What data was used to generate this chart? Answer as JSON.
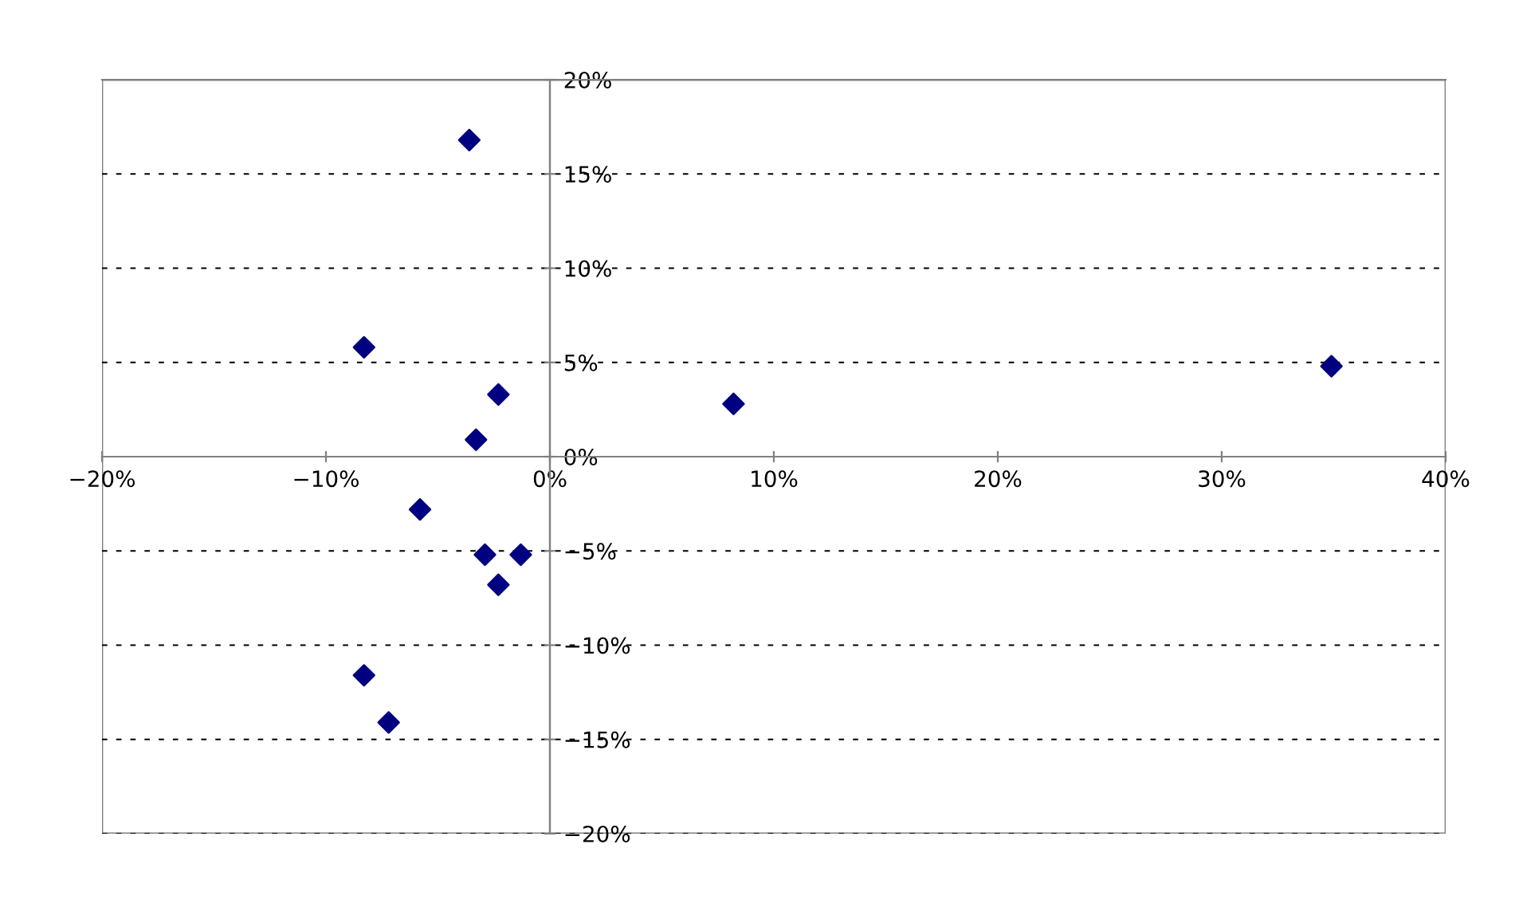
{
  "chart_data": {
    "type": "scatter",
    "x": [
      -3.6,
      -8.3,
      -2.3,
      -3.3,
      34.9,
      8.2,
      -5.8,
      -2.9,
      -1.3,
      -2.3,
      -8.3,
      -7.2
    ],
    "series": [
      {
        "color": "#000080",
        "values": [
          16.8,
          5.8,
          3.3,
          0.9,
          4.8,
          2.8,
          -2.8,
          -5.2,
          -5.2,
          -6.8,
          -11.6,
          -14.1
        ]
      }
    ],
    "marker": "diamond",
    "xlim": [
      -20,
      40
    ],
    "xticks": [
      {
        "value": -20,
        "label": "−20%"
      },
      {
        "value": -10,
        "label": "−10%"
      },
      {
        "value": 0,
        "label": "0%"
      },
      {
        "value": 10,
        "label": "10%"
      },
      {
        "value": 20,
        "label": "20%"
      },
      {
        "value": 30,
        "label": "30%"
      },
      {
        "value": 40,
        "label": "40%"
      }
    ],
    "ylim": [
      -20,
      20
    ],
    "yticks": [
      {
        "value": -20,
        "label": "−20%"
      },
      {
        "value": -15,
        "label": "−15%"
      },
      {
        "value": -10,
        "label": "−10%"
      },
      {
        "value": -5,
        "label": "−5%"
      },
      {
        "value": 0,
        "label": "0%"
      },
      {
        "value": 5,
        "label": "5%"
      },
      {
        "value": 10,
        "label": "10%"
      },
      {
        "value": 15,
        "label": "15%"
      },
      {
        "value": 20,
        "label": "20%"
      }
    ],
    "grid": "y"
  }
}
